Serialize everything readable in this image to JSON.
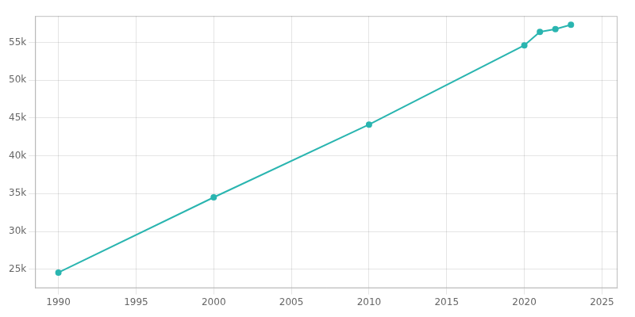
{
  "chart_data": {
    "type": "line",
    "x": [
      1990,
      2000,
      2010,
      2020,
      2021,
      2022,
      2023
    ],
    "values": [
      24563,
      34514,
      44137,
      54628,
      56397,
      56774,
      57340
    ],
    "color": "#2ab5b0",
    "marker": "circle",
    "line_style": "solid",
    "xlim": [
      1988.5,
      2026
    ],
    "ylim": [
      22500,
      58500
    ],
    "xticks": [
      1990,
      1995,
      2000,
      2005,
      2010,
      2015,
      2020,
      2025
    ],
    "yticks": [
      {
        "value": 25000,
        "label": "25k"
      },
      {
        "value": 30000,
        "label": "30k"
      },
      {
        "value": 35000,
        "label": "35k"
      },
      {
        "value": 40000,
        "label": "40k"
      },
      {
        "value": 45000,
        "label": "45k"
      },
      {
        "value": 50000,
        "label": "50k"
      },
      {
        "value": 55000,
        "label": "55k"
      }
    ],
    "grid": true
  }
}
